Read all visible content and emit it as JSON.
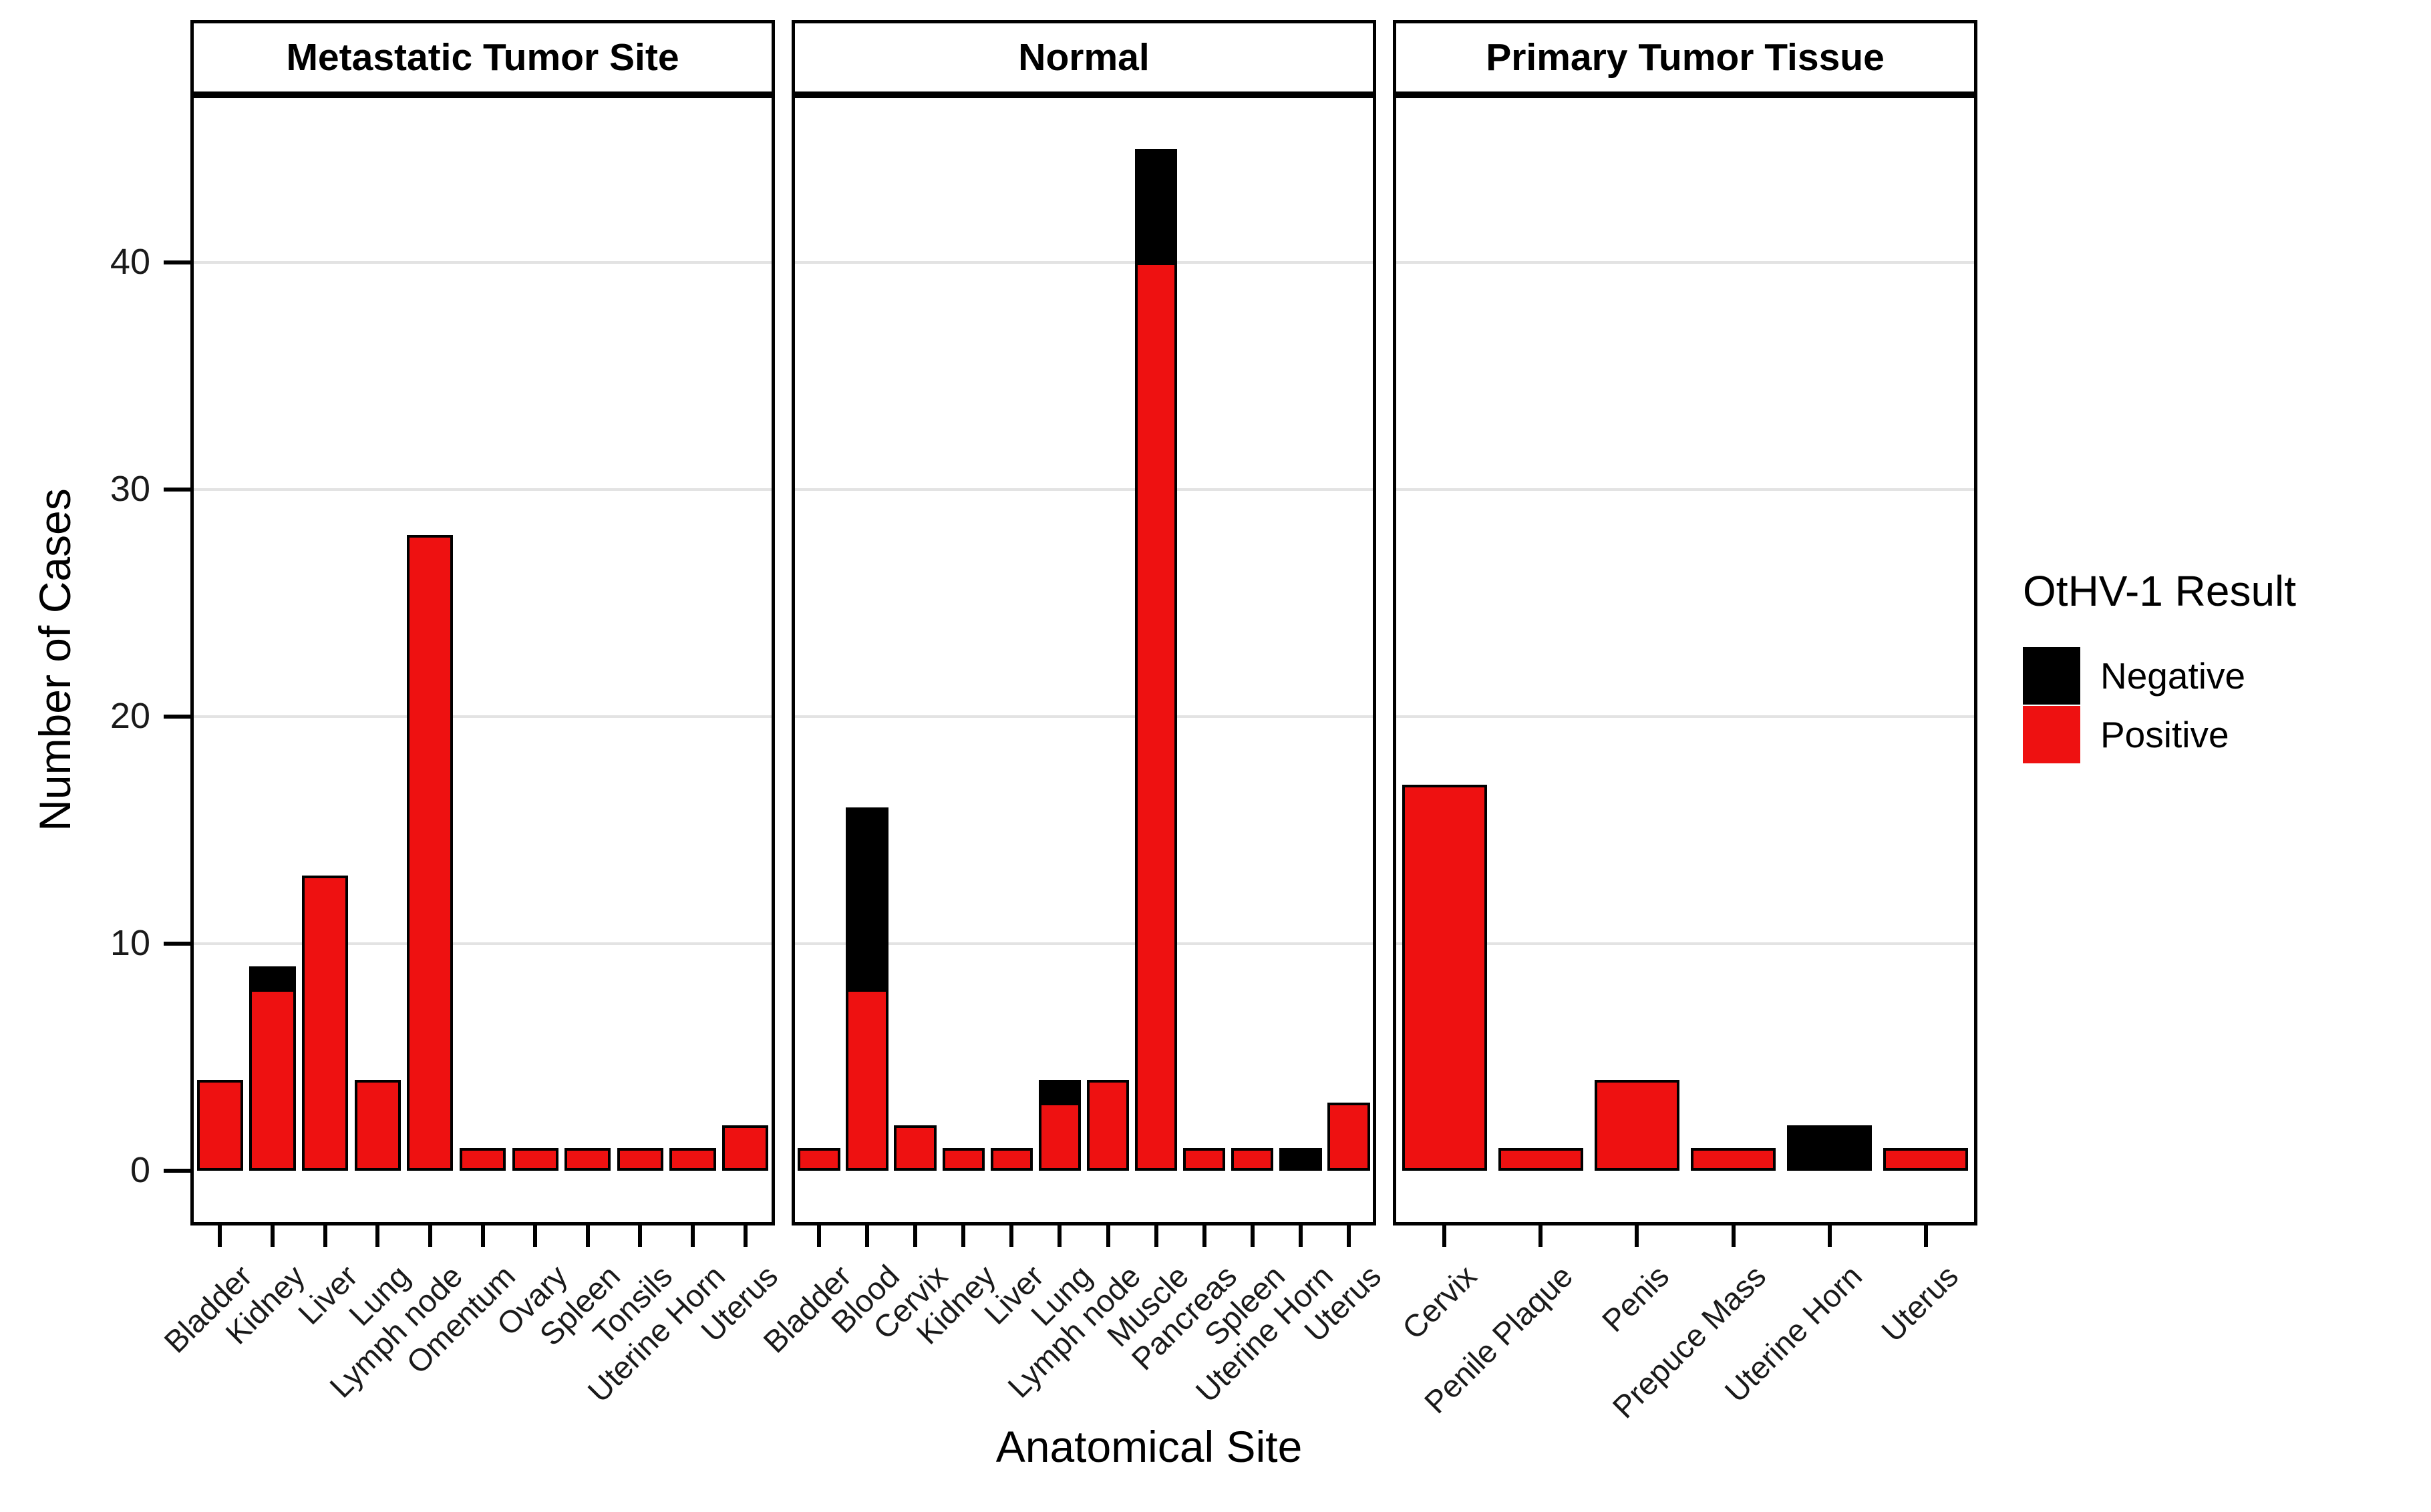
{
  "chart_data": {
    "type": "bar",
    "stacked": true,
    "title": "",
    "xlabel": "Anatomical Site",
    "ylabel": "Number of Cases",
    "ylim": [
      0,
      45
    ],
    "yticks": [
      0,
      10,
      20,
      30,
      40
    ],
    "grid": "horizontal-major-only",
    "legend_position": "right",
    "legend_title": "OtHV-1 Result",
    "legend_entries": [
      {
        "label": "Negative",
        "color": "#000000"
      },
      {
        "label": "Positive",
        "color": "#EE1111"
      }
    ],
    "series_colors": {
      "Positive": "#EE1111",
      "Negative": "#000000"
    },
    "panels": [
      {
        "title": "Metastatic Tumor Site",
        "categories": [
          "Bladder",
          "Kidney",
          "Liver",
          "Lung",
          "Lymph node",
          "Omentum",
          "Ovary",
          "Spleen",
          "Tonsils",
          "Uterine Horn",
          "Uterus"
        ],
        "series": [
          {
            "name": "Positive",
            "values": [
              4,
              8,
              13,
              4,
              28,
              1,
              1,
              1,
              1,
              1,
              2
            ]
          },
          {
            "name": "Negative",
            "values": [
              0,
              1,
              0,
              0,
              0,
              0,
              0,
              0,
              0,
              0,
              0
            ]
          }
        ]
      },
      {
        "title": "Normal",
        "categories": [
          "Bladder",
          "Blood",
          "Cervix",
          "Kidney",
          "Liver",
          "Lung",
          "Lymph node",
          "Muscle",
          "Pancreas",
          "Spleen",
          "Uterine Horn",
          "Uterus"
        ],
        "series": [
          {
            "name": "Positive",
            "values": [
              1,
              8,
              2,
              1,
              1,
              3,
              4,
              40,
              1,
              1,
              0,
              3
            ]
          },
          {
            "name": "Negative",
            "values": [
              0,
              8,
              0,
              0,
              0,
              1,
              0,
              5,
              0,
              0,
              1,
              0
            ]
          }
        ]
      },
      {
        "title": "Primary Tumor Tissue",
        "categories": [
          "Cervix",
          "Penile Plaque",
          "Penis",
          "Prepuce Mass",
          "Uterine Horn",
          "Uterus"
        ],
        "series": [
          {
            "name": "Positive",
            "values": [
              17,
              1,
              4,
              1,
              0,
              1
            ]
          },
          {
            "name": "Negative",
            "values": [
              0,
              0,
              0,
              0,
              2,
              0
            ]
          }
        ]
      }
    ]
  }
}
